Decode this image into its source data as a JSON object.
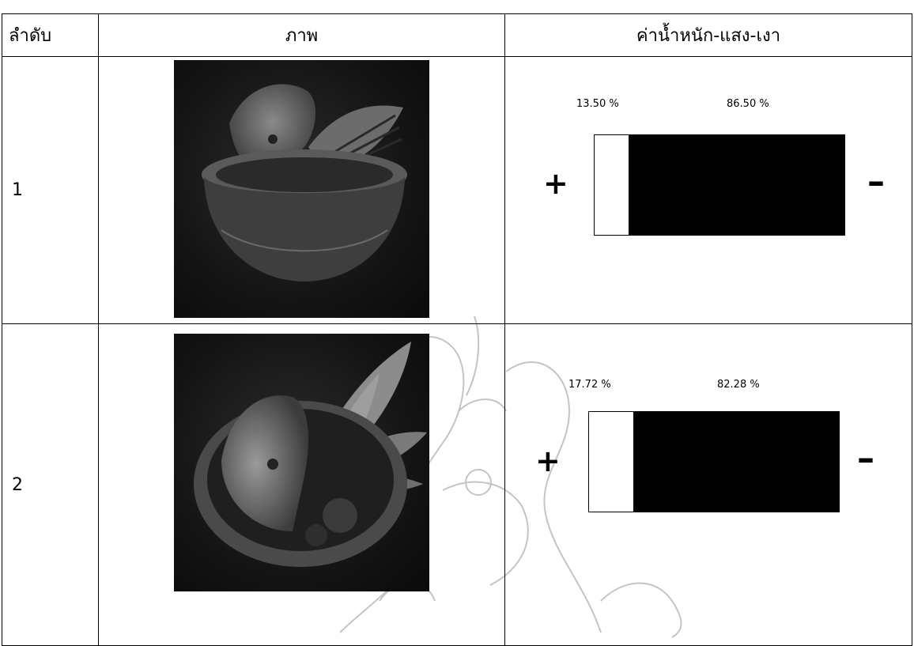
{
  "header": {
    "col_order": "ลำดับ",
    "col_image": "ภาพ",
    "col_weight": "ค่าน้ำหนัก-แสง-เงา"
  },
  "rows": [
    {
      "index": "1",
      "image_icon": "still-life-bowl-photo",
      "light_label": "13.50 %",
      "dark_label": "86.50 %",
      "light_fraction": 0.135,
      "dark_fraction": 0.865,
      "plus_symbol": "+",
      "minus_symbol": "–"
    },
    {
      "index": "2",
      "image_icon": "still-life-bowl-with-leaves-photo",
      "light_label": "17.72 %",
      "dark_label": "82.28 %",
      "light_fraction": 0.1772,
      "dark_fraction": 0.8228,
      "plus_symbol": "+",
      "minus_symbol": "–"
    }
  ],
  "colors": {
    "grid": "#000000",
    "bar_light": "#ffffff",
    "bar_dark": "#000000",
    "watermark": "#bdbdbd"
  }
}
